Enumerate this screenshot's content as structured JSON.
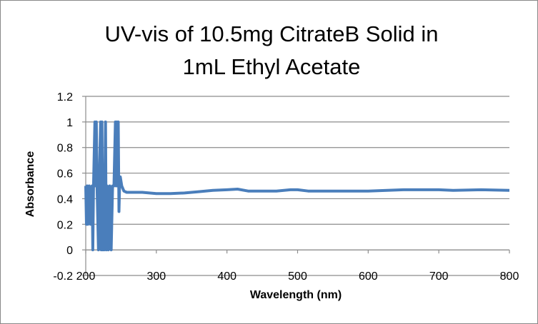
{
  "chart_data": {
    "type": "line",
    "title_lines": [
      "UV-vis of 10.5mg CitrateB Solid in",
      "1mL Ethyl Acetate"
    ],
    "xlabel": "Wavelength (nm)",
    "ylabel": "Absorbance",
    "xlim": [
      200,
      800
    ],
    "ylim": [
      -0.2,
      1.2
    ],
    "xticks": [
      200,
      300,
      400,
      500,
      600,
      700,
      800
    ],
    "yticks": [
      -0.2,
      0,
      0.2,
      0.4,
      0.6,
      0.8,
      1,
      1.2
    ],
    "ytick_labels": [
      "-0.2",
      "0",
      "0.2",
      "0.4",
      "0.6",
      "0.8",
      "1",
      "1.2"
    ],
    "grid": "horizontal",
    "legend": "none",
    "series": [
      {
        "name": "Absorbance",
        "color": "#4a7ebb",
        "x": [
          200,
          201,
          202,
          203,
          205,
          207,
          209,
          210,
          211,
          213,
          214,
          215,
          216,
          218,
          219,
          221,
          222,
          223,
          224,
          225,
          226,
          228,
          229,
          230,
          232,
          234,
          236,
          238,
          240,
          242,
          243,
          244,
          245,
          246,
          247,
          248,
          249,
          251,
          254,
          258,
          260,
          280,
          300,
          320,
          340,
          360,
          380,
          400,
          415,
          430,
          450,
          470,
          490,
          500,
          515,
          540,
          560,
          600,
          650,
          700,
          720,
          760,
          800
        ],
        "y": [
          0.5,
          0.2,
          0.5,
          0.2,
          0.5,
          0.2,
          0.5,
          0,
          0.5,
          1.0,
          0.5,
          1.0,
          0.5,
          0,
          0.5,
          1.0,
          0,
          1.0,
          0,
          0.5,
          0,
          1.0,
          0,
          0.5,
          0,
          0.5,
          0,
          0.5,
          0.5,
          1.0,
          0.5,
          1.0,
          0.5,
          1.0,
          0.3,
          0.5,
          0.57,
          0.5,
          0.46,
          0.45,
          0.45,
          0.45,
          0.44,
          0.44,
          0.445,
          0.455,
          0.465,
          0.47,
          0.475,
          0.46,
          0.46,
          0.46,
          0.47,
          0.47,
          0.46,
          0.46,
          0.46,
          0.46,
          0.47,
          0.47,
          0.465,
          0.47,
          0.465
        ]
      }
    ]
  }
}
